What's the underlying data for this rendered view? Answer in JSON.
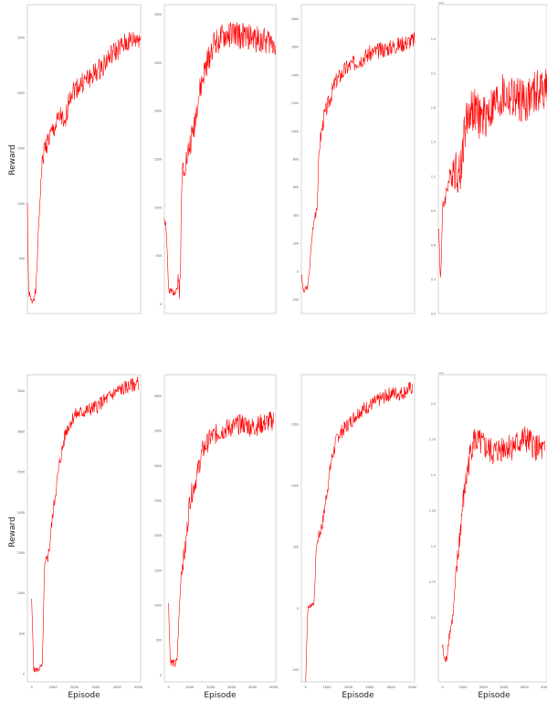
{
  "figure": {
    "ylabel": "Reward",
    "xlabel": "Episode",
    "line_color": "#ff0000"
  },
  "chart_data": [
    {
      "type": "line",
      "row": 0,
      "col": 0,
      "ylabel": "Reward",
      "xlim": [
        0,
        4000
      ],
      "ylim": [
        0,
        2800
      ],
      "yticks": [
        "500",
        "1000",
        "1500",
        "2000",
        "2500"
      ],
      "yticks_v": [
        500,
        1000,
        1500,
        2000,
        2500
      ],
      "xticks": [],
      "x_offset": "",
      "anchors": [
        [
          0,
          1000
        ],
        [
          40,
          200
        ],
        [
          150,
          100
        ],
        [
          300,
          200
        ],
        [
          400,
          800
        ],
        [
          500,
          1300
        ],
        [
          600,
          1500
        ],
        [
          800,
          1600
        ],
        [
          1000,
          1700
        ],
        [
          1200,
          1800
        ],
        [
          1300,
          1650
        ],
        [
          1500,
          2000
        ],
        [
          2000,
          2100
        ],
        [
          2500,
          2200
        ],
        [
          3000,
          2350
        ],
        [
          3500,
          2450
        ],
        [
          4000,
          2500
        ]
      ],
      "noise": 100,
      "seed": 1
    },
    {
      "type": "line",
      "row": 0,
      "col": 1,
      "xlim": [
        0,
        5000
      ],
      "ylim": [
        -100,
        3100
      ],
      "yticks": [
        "0",
        "500",
        "1000",
        "1500",
        "2000",
        "2500",
        "3000"
      ],
      "yticks_v": [
        0,
        500,
        1000,
        1500,
        2000,
        2500,
        3000
      ],
      "xticks": [],
      "x_offset": "",
      "anchors": [
        [
          0,
          900
        ],
        [
          80,
          800
        ],
        [
          200,
          100
        ],
        [
          500,
          150
        ],
        [
          700,
          200
        ],
        [
          800,
          1400
        ],
        [
          1000,
          1500
        ],
        [
          1300,
          1800
        ],
        [
          1500,
          2100
        ],
        [
          1800,
          2400
        ],
        [
          2200,
          2700
        ],
        [
          3000,
          2800
        ],
        [
          4000,
          2750
        ],
        [
          5000,
          2700
        ]
      ],
      "noise": 140,
      "seed": 2
    },
    {
      "type": "line",
      "row": 0,
      "col": 2,
      "xlim": [
        0,
        5000
      ],
      "ylim": [
        -300,
        1900
      ],
      "yticks": [
        "-200",
        "0",
        "200",
        "400",
        "600",
        "800",
        "1000",
        "1200",
        "1400",
        "1600",
        "1800"
      ],
      "yticks_v": [
        -200,
        0,
        200,
        400,
        600,
        800,
        1000,
        1200,
        1400,
        1600,
        1800
      ],
      "xticks": [],
      "x_offset": "",
      "anchors": [
        [
          0,
          -20
        ],
        [
          100,
          -150
        ],
        [
          300,
          -100
        ],
        [
          400,
          100
        ],
        [
          500,
          300
        ],
        [
          700,
          500
        ],
        [
          800,
          900
        ],
        [
          1000,
          1100
        ],
        [
          1200,
          1200
        ],
        [
          1500,
          1350
        ],
        [
          2000,
          1450
        ],
        [
          3000,
          1550
        ],
        [
          4000,
          1600
        ],
        [
          5000,
          1650
        ]
      ],
      "noise": 60,
      "seed": 3
    },
    {
      "type": "line",
      "row": 0,
      "col": 3,
      "xlim": [
        0,
        5000
      ],
      "ylim": [
        0,
        2.7
      ],
      "yticks": [
        "0.0",
        "0.3",
        "0.6",
        "0.9",
        "1.2",
        "1.5",
        "1.8",
        "2.1",
        "2.4"
      ],
      "yticks_v": [
        0,
        0.3,
        0.6,
        0.9,
        1.2,
        1.5,
        1.8,
        2.1,
        2.4
      ],
      "xticks": [],
      "x_offset": "1e3",
      "anchors": [
        [
          0,
          0.8
        ],
        [
          100,
          0.3
        ],
        [
          200,
          0.9
        ],
        [
          400,
          1.1
        ],
        [
          700,
          1.3
        ],
        [
          1000,
          1.2
        ],
        [
          1200,
          1.6
        ],
        [
          1500,
          1.8
        ],
        [
          2000,
          1.7
        ],
        [
          3000,
          1.9
        ],
        [
          4000,
          1.85
        ],
        [
          5000,
          2.0
        ]
      ],
      "noise": 0.2,
      "seed": 4
    },
    {
      "type": "line",
      "row": 1,
      "col": 0,
      "ylabel": "Reward",
      "xlabel": "Episode",
      "xlim": [
        -200,
        5100
      ],
      "ylim": [
        -100,
        3700
      ],
      "yticks": [
        "0",
        "500",
        "1000",
        "1500",
        "2000",
        "2500",
        "3000",
        "3500"
      ],
      "yticks_v": [
        0,
        500,
        1000,
        1500,
        2000,
        2500,
        3000,
        3500
      ],
      "xticks": [
        "0",
        "1000",
        "2000",
        "3000",
        "4000",
        "5000"
      ],
      "xticks_v": [
        0,
        1000,
        2000,
        3000,
        4000,
        5000
      ],
      "x_offset": "",
      "anchors": [
        [
          0,
          900
        ],
        [
          100,
          50
        ],
        [
          300,
          50
        ],
        [
          500,
          100
        ],
        [
          600,
          1300
        ],
        [
          800,
          1500
        ],
        [
          1000,
          2000
        ],
        [
          1300,
          2600
        ],
        [
          1600,
          3000
        ],
        [
          2000,
          3200
        ],
        [
          2500,
          3250
        ],
        [
          3000,
          3300
        ],
        [
          3500,
          3400
        ],
        [
          4000,
          3500
        ],
        [
          4500,
          3550
        ],
        [
          5000,
          3600
        ]
      ],
      "noise": 90,
      "seed": 5
    },
    {
      "type": "line",
      "row": 1,
      "col": 1,
      "xlabel": "Episode",
      "xlim": [
        -200,
        5100
      ],
      "ylim": [
        -100,
        4300
      ],
      "yticks": [
        "0",
        "500",
        "1000",
        "1500",
        "2000",
        "2500",
        "3000",
        "3500",
        "4000"
      ],
      "yticks_v": [
        0,
        500,
        1000,
        1500,
        2000,
        2500,
        3000,
        3500,
        4000
      ],
      "xticks": [
        "0",
        "1000",
        "2000",
        "3000",
        "4000",
        "5000"
      ],
      "xticks_v": [
        0,
        1000,
        2000,
        3000,
        4000,
        5000
      ],
      "x_offset": "",
      "anchors": [
        [
          0,
          1000
        ],
        [
          80,
          200
        ],
        [
          300,
          150
        ],
        [
          400,
          200
        ],
        [
          600,
          1500
        ],
        [
          800,
          1800
        ],
        [
          1000,
          2500
        ],
        [
          1300,
          2800
        ],
        [
          1600,
          3200
        ],
        [
          2000,
          3400
        ],
        [
          2500,
          3500
        ],
        [
          3000,
          3550
        ],
        [
          3500,
          3600
        ],
        [
          4000,
          3550
        ],
        [
          4500,
          3600
        ],
        [
          5000,
          3650
        ]
      ],
      "noise": 150,
      "seed": 6
    },
    {
      "type": "line",
      "row": 1,
      "col": 2,
      "xlabel": "Episode",
      "xlim": [
        -200,
        5100
      ],
      "ylim": [
        -600,
        1900
      ],
      "yticks": [
        "-500",
        "0",
        "500",
        "1000",
        "1500"
      ],
      "yticks_v": [
        -500,
        0,
        500,
        1000,
        1500
      ],
      "xticks": [
        "0",
        "1000",
        "2000",
        "3000",
        "4000",
        "5000"
      ],
      "xticks_v": [
        0,
        1000,
        2000,
        3000,
        4000,
        5000
      ],
      "x_offset": "",
      "anchors": [
        [
          0,
          -600
        ],
        [
          100,
          0
        ],
        [
          400,
          50
        ],
        [
          500,
          500
        ],
        [
          800,
          700
        ],
        [
          1200,
          1200
        ],
        [
          1500,
          1400
        ],
        [
          2000,
          1500
        ],
        [
          2500,
          1600
        ],
        [
          3000,
          1650
        ],
        [
          3500,
          1700
        ],
        [
          4000,
          1750
        ],
        [
          4500,
          1750
        ],
        [
          5000,
          1800
        ]
      ],
      "noise": 60,
      "seed": 7
    },
    {
      "type": "line",
      "row": 1,
      "col": 3,
      "xlabel": "Episode",
      "xlim": [
        -200,
        5100
      ],
      "ylim": [
        0.05,
        2.2
      ],
      "yticks": [
        "0.5",
        "0.75",
        "1.0",
        "1.25",
        "1.5",
        "1.75",
        "2.0"
      ],
      "yticks_v": [
        0.5,
        0.75,
        1.0,
        1.25,
        1.5,
        1.75,
        2.0
      ],
      "xticks": [
        "0",
        "1000",
        "2000",
        "3000",
        "4000",
        "5000"
      ],
      "xticks_v": [
        0,
        1000,
        2000,
        3000,
        4000,
        5000
      ],
      "x_offset": "1e3",
      "anchors": [
        [
          0,
          0.3
        ],
        [
          100,
          0.2
        ],
        [
          200,
          0.2
        ],
        [
          300,
          0.35
        ],
        [
          500,
          0.5
        ],
        [
          800,
          1.0
        ],
        [
          1000,
          1.3
        ],
        [
          1300,
          1.6
        ],
        [
          1500,
          1.75
        ],
        [
          2000,
          1.7
        ],
        [
          2500,
          1.65
        ],
        [
          3000,
          1.7
        ],
        [
          3500,
          1.7
        ],
        [
          4000,
          1.75
        ],
        [
          4500,
          1.7
        ],
        [
          5000,
          1.65
        ]
      ],
      "noise": 0.1,
      "seed": 8
    }
  ]
}
